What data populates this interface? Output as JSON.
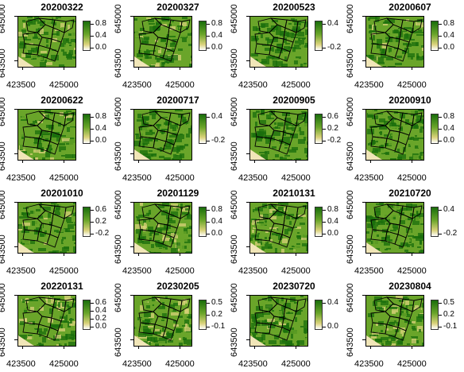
{
  "chart_data": {
    "type": "heatmap",
    "axis": {
      "y_ticks": [
        "643500",
        "645000"
      ],
      "x_ticks": [
        "423500",
        "425000"
      ]
    },
    "colors": {
      "high": "#1a6e0c",
      "mid": "#6aa52a",
      "low": "#d9d27a",
      "bare": "#f1e6b8",
      "outline": "#000000"
    },
    "panels": [
      {
        "title": "20200322",
        "legend": [
          "0.8",
          "0.4",
          "0.0"
        ],
        "fill": 0.55
      },
      {
        "title": "20200327",
        "legend": [
          "0.8",
          "0.4",
          "0.0"
        ],
        "fill": 0.55
      },
      {
        "title": "20200523",
        "legend": [
          "0.4",
          "-0.2"
        ],
        "fill": 0.75
      },
      {
        "title": "20200607",
        "legend": [
          "0.8",
          "0.4",
          "0.0"
        ],
        "fill": 0.6
      },
      {
        "title": "20200622",
        "legend": [
          "0.8",
          "0.4",
          "0.0"
        ],
        "fill": 0.6
      },
      {
        "title": "20200717",
        "legend": [
          "0.4",
          "-0.2"
        ],
        "fill": 0.7
      },
      {
        "title": "20200905",
        "legend": [
          "0.6",
          "0.2",
          "-0.2"
        ],
        "fill": 0.8
      },
      {
        "title": "20200910",
        "legend": [
          "0.8",
          "0.4",
          "0.0"
        ],
        "fill": 0.7
      },
      {
        "title": "20201010",
        "legend": [
          "0.6",
          "0.2",
          "-0.2"
        ],
        "fill": 0.65
      },
      {
        "title": "20201129",
        "legend": [
          "0.8",
          "0.4",
          "0.0"
        ],
        "fill": 0.55
      },
      {
        "title": "20210131",
        "legend": [
          "0.8",
          "0.4",
          "0.0"
        ],
        "fill": 0.55
      },
      {
        "title": "20210720",
        "legend": [
          "0.4",
          "-0.2"
        ],
        "fill": 0.75
      },
      {
        "title": "20220131",
        "legend": [
          "0.6",
          "0.4",
          "0.2",
          "0.0"
        ],
        "fill": 0.45
      },
      {
        "title": "20230205",
        "legend": [
          "0.5",
          "0.2",
          "-0.1"
        ],
        "fill": 0.5
      },
      {
        "title": "20230720",
        "legend": [
          "0.4",
          "0.0"
        ],
        "fill": 0.65
      },
      {
        "title": "20230804",
        "legend": [
          "0.5",
          "0.2",
          "-0.1"
        ],
        "fill": 0.5
      }
    ]
  }
}
